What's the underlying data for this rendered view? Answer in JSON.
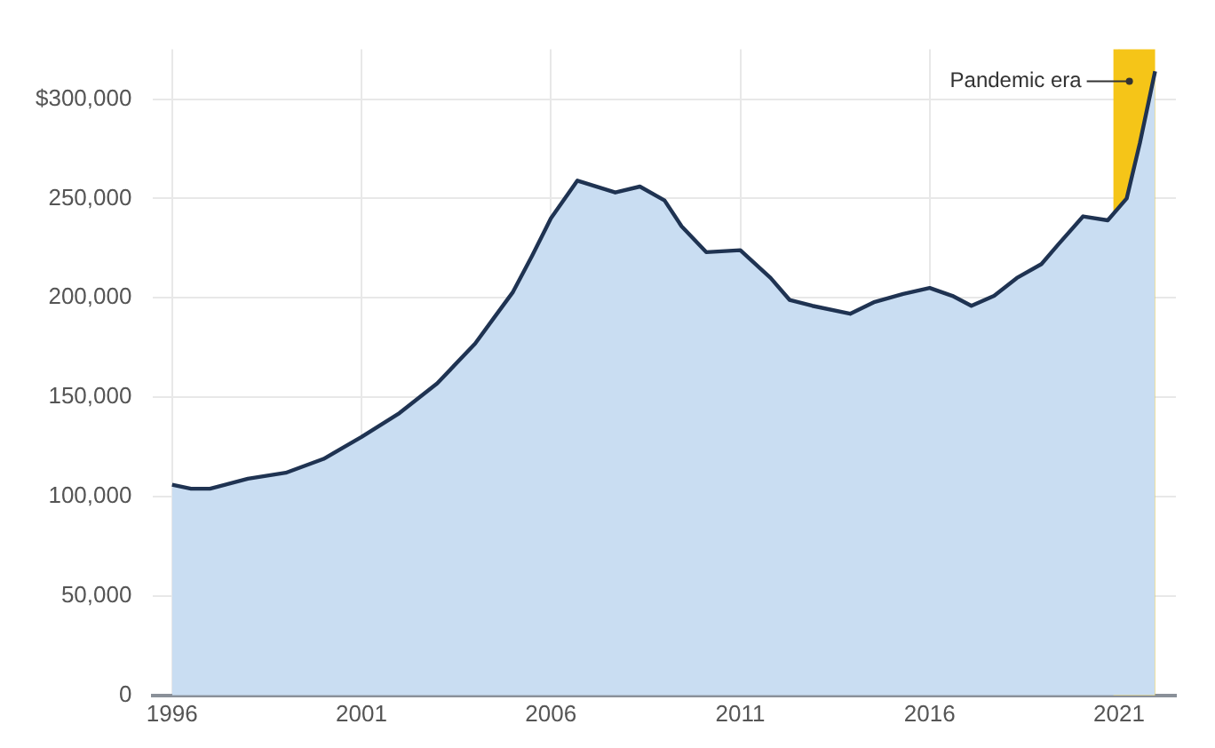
{
  "chart_data": {
    "type": "area",
    "x": [
      1996,
      1996.5,
      1997,
      1998,
      1999,
      2000,
      2001,
      2002,
      2003,
      2004,
      2004.5,
      2005,
      2005.5,
      2006,
      2006.7,
      2007.7,
      2008.35,
      2009,
      2009.45,
      2010.1,
      2011,
      2011.8,
      2012.3,
      2012.9,
      2013.9,
      2014.55,
      2015.3,
      2016,
      2016.6,
      2017.1,
      2017.7,
      2018.3,
      2018.95,
      2019.4,
      2020.05,
      2020.7,
      2021.2,
      2021.55,
      2021.95
    ],
    "series": [
      {
        "color": "#1f3352",
        "values": [
          106000,
          104000,
          104000,
          109000,
          112000,
          119000,
          130000,
          142000,
          157000,
          177000,
          190000,
          203000,
          221000,
          240000,
          259000,
          253000,
          256000,
          249000,
          236000,
          223000,
          224000,
          210000,
          199000,
          196000,
          192000,
          198000,
          202000,
          205000,
          201000,
          196000,
          201000,
          210000,
          217000,
          227000,
          241000,
          239000,
          250000,
          278000,
          314000
        ]
      }
    ],
    "xlim": [
      1995.5,
      2022.5
    ],
    "xticks": [
      1996,
      2001,
      2006,
      2011,
      2016,
      2021
    ],
    "ylim": [
      0,
      325000
    ],
    "yticks": [
      {
        "value": 0,
        "label": "0"
      },
      {
        "value": 50000,
        "label": "50,000"
      },
      {
        "value": 100000,
        "label": "100,000"
      },
      {
        "value": 150000,
        "label": "150,000"
      },
      {
        "value": 200000,
        "label": "200,000"
      },
      {
        "value": 250000,
        "label": "250,000"
      },
      {
        "value": 300000,
        "label": "$300,000"
      }
    ],
    "grid": true,
    "legend": false,
    "marker": "none",
    "bands": [
      {
        "axis": "x",
        "from": 2020.85,
        "to": 2021.95,
        "label": "Pandemic era",
        "color": "#f5c518"
      }
    ]
  }
}
